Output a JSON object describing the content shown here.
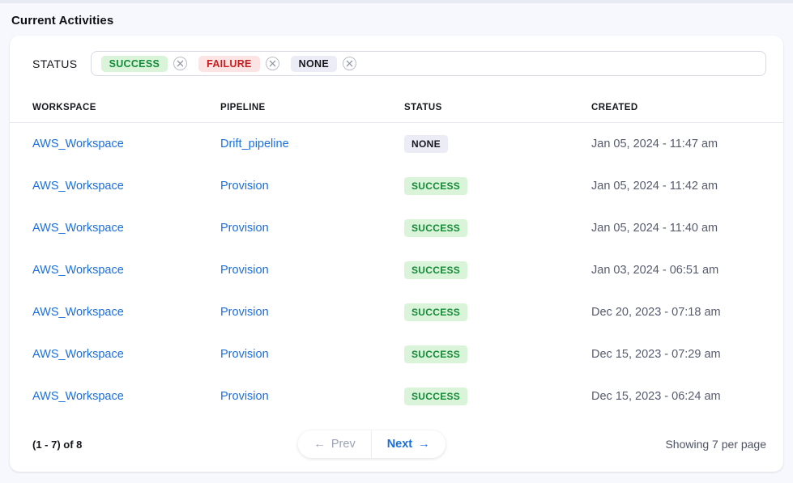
{
  "page": {
    "title": "Current Activities",
    "background": "#f7f8fd"
  },
  "filter": {
    "label": "STATUS",
    "chips": [
      {
        "label": "SUCCESS",
        "type": "success"
      },
      {
        "label": "FAILURE",
        "type": "failure"
      },
      {
        "label": "NONE",
        "type": "none"
      }
    ],
    "remove_icon": "circle-x-icon"
  },
  "status_colors": {
    "success": {
      "bg": "#d9f4d9",
      "text": "#148a38"
    },
    "failure": {
      "bg": "#fde4e4",
      "text": "#c81e1e"
    },
    "none": {
      "bg": "#ebecf5",
      "text": "#17181d"
    }
  },
  "table": {
    "link_color": "#1a6fe0",
    "columns": [
      "WORKSPACE",
      "PIPELINE",
      "STATUS",
      "CREATED"
    ],
    "rows": [
      {
        "workspace": "AWS_Workspace",
        "pipeline": "Drift_pipeline",
        "status": "NONE",
        "status_type": "none",
        "created": "Jan 05, 2024 - 11:47 am"
      },
      {
        "workspace": "AWS_Workspace",
        "pipeline": "Provision",
        "status": "SUCCESS",
        "status_type": "success",
        "created": "Jan 05, 2024 - 11:42 am"
      },
      {
        "workspace": "AWS_Workspace",
        "pipeline": "Provision",
        "status": "SUCCESS",
        "status_type": "success",
        "created": "Jan 05, 2024 - 11:40 am"
      },
      {
        "workspace": "AWS_Workspace",
        "pipeline": "Provision",
        "status": "SUCCESS",
        "status_type": "success",
        "created": "Jan 03, 2024 - 06:51 am"
      },
      {
        "workspace": "AWS_Workspace",
        "pipeline": "Provision",
        "status": "SUCCESS",
        "status_type": "success",
        "created": "Dec 20, 2023 - 07:18 am"
      },
      {
        "workspace": "AWS_Workspace",
        "pipeline": "Provision",
        "status": "SUCCESS",
        "status_type": "success",
        "created": "Dec 15, 2023 - 07:29 am"
      },
      {
        "workspace": "AWS_Workspace",
        "pipeline": "Provision",
        "status": "SUCCESS",
        "status_type": "success",
        "created": "Dec 15, 2023 - 06:24 am"
      }
    ]
  },
  "footer": {
    "range_text": "(1 - 7) of 8",
    "prev": {
      "arrow": "←",
      "label": "Prev"
    },
    "next": {
      "label": "Next",
      "arrow": "→"
    },
    "per_page_text": "Showing 7 per page"
  }
}
